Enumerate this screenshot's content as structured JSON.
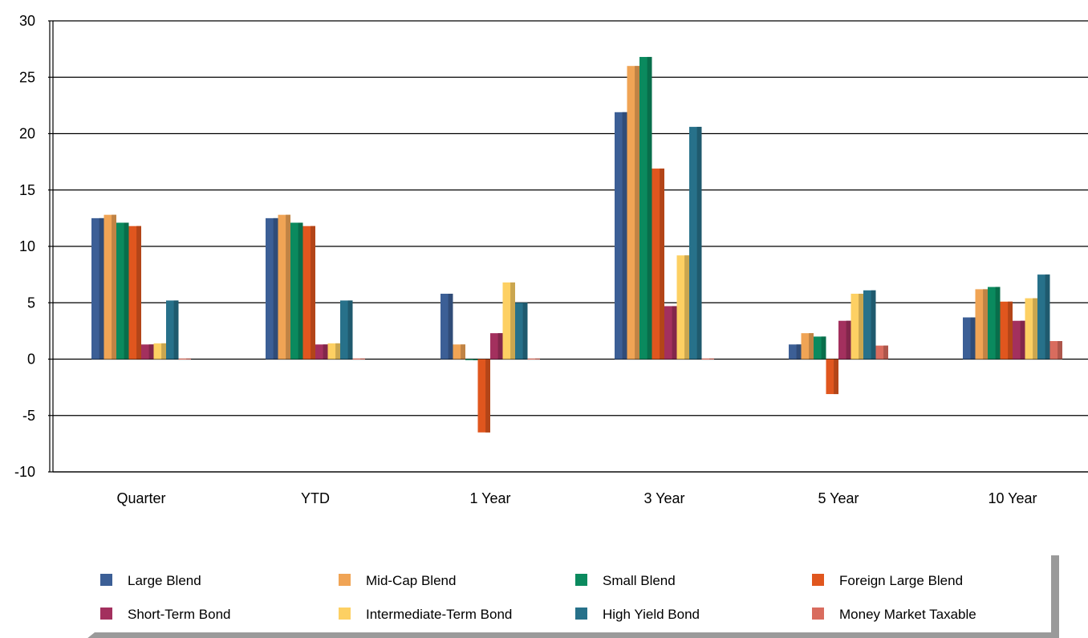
{
  "chart_data": {
    "type": "bar",
    "categories": [
      "Quarter",
      "YTD",
      "1 Year",
      "3 Year",
      "5 Year",
      "10 Year"
    ],
    "ylim": [
      -10,
      30
    ],
    "yticks": [
      30,
      25,
      20,
      15,
      10,
      5,
      0,
      -5,
      -10
    ],
    "grid": true,
    "legend_position": "bottom",
    "series": [
      {
        "name": "Large Blend",
        "color": "#3C5F96",
        "values": [
          12.5,
          12.5,
          5.8,
          21.9,
          1.3,
          3.7
        ]
      },
      {
        "name": "Mid-Cap Blend",
        "color": "#F0A455",
        "values": [
          12.8,
          12.8,
          1.3,
          26.0,
          2.3,
          6.2
        ]
      },
      {
        "name": "Small Blend",
        "color": "#0A8A5E",
        "values": [
          12.1,
          12.1,
          0.0,
          26.8,
          2.0,
          6.4
        ]
      },
      {
        "name": "Foreign Large Blend",
        "color": "#E0561E",
        "values": [
          11.8,
          11.8,
          -6.5,
          16.9,
          -3.1,
          5.1
        ]
      },
      {
        "name": "Short-Term Bond",
        "color": "#A3305E",
        "values": [
          1.3,
          1.3,
          2.3,
          4.7,
          3.4,
          3.4
        ]
      },
      {
        "name": "Intermediate-Term Bond",
        "color": "#FDD063",
        "values": [
          1.4,
          1.4,
          6.8,
          9.2,
          5.8,
          5.4
        ]
      },
      {
        "name": "High Yield Bond",
        "color": "#27718A",
        "values": [
          5.2,
          5.2,
          5.0,
          20.6,
          6.1,
          7.5
        ]
      },
      {
        "name": "Money Market Taxable",
        "color": "#D96C5E",
        "values": [
          0.05,
          0.05,
          0.05,
          0.05,
          1.2,
          1.6
        ]
      }
    ]
  }
}
